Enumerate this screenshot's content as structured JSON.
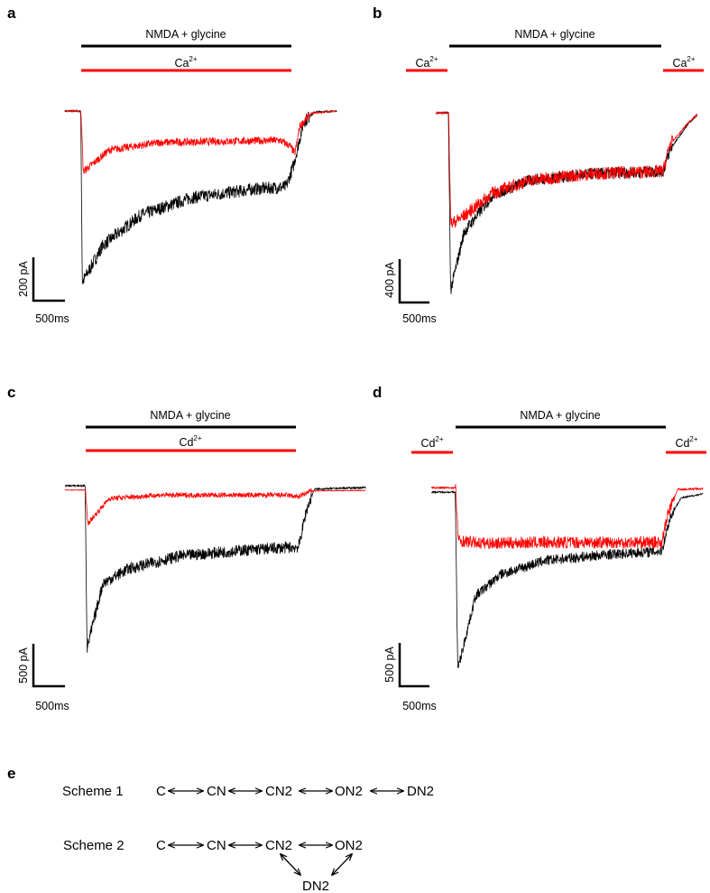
{
  "colors": {
    "control": "#000000",
    "ion": "#ff0000"
  },
  "chart_data": [
    {
      "type": "line",
      "panel": "a",
      "application_label": "NMDA + glycine",
      "ion_label": {
        "base": "Ca",
        "sup": "2+"
      },
      "ion_during_application": true,
      "scale_bar": {
        "y_label": "200 pA",
        "x_label": "500ms",
        "y_value_pA": 200,
        "x_value_ms": 500
      },
      "application_ms": [
        250,
        3720
      ],
      "xlim_ms": [
        0,
        4300
      ],
      "series": [
        {
          "name": "control",
          "color": "#000000",
          "noise_pA": 30,
          "points": [
            [
              0,
              0
            ],
            [
              250,
              0
            ],
            [
              275,
              -790
            ],
            [
              600,
              -620
            ],
            [
              1200,
              -480
            ],
            [
              2000,
              -400
            ],
            [
              3000,
              -360
            ],
            [
              3500,
              -350
            ],
            [
              3620,
              -250
            ],
            [
              3780,
              -50
            ],
            [
              3950,
              -5
            ],
            [
              4300,
              0
            ]
          ]
        },
        {
          "name": "Ca2+",
          "color": "#ff0000",
          "noise_pA": 18,
          "points": [
            [
              0,
              0
            ],
            [
              255,
              0
            ],
            [
              290,
              -280
            ],
            [
              700,
              -180
            ],
            [
              1500,
              -145
            ],
            [
              3400,
              -135
            ],
            [
              3560,
              -160
            ],
            [
              3640,
              -195
            ],
            [
              3720,
              -70
            ],
            [
              3900,
              -10
            ],
            [
              4300,
              0
            ]
          ]
        }
      ]
    },
    {
      "type": "line",
      "panel": "b",
      "application_label": "NMDA + glycine",
      "ion_label": {
        "base": "Ca",
        "sup": "2+"
      },
      "ion_during_application": false,
      "scale_bar": {
        "y_label": "400 pA",
        "x_label": "500ms",
        "y_value_pA": 400,
        "x_value_ms": 500
      },
      "application_ms": [
        214,
        3600
      ],
      "xlim_ms": [
        0,
        4140
      ],
      "series": [
        {
          "name": "control",
          "color": "#000000",
          "noise_pA": 55,
          "points": [
            [
              0,
              0
            ],
            [
              200,
              0
            ],
            [
              235,
              -1640
            ],
            [
              450,
              -1100
            ],
            [
              900,
              -760
            ],
            [
              1500,
              -620
            ],
            [
              2500,
              -560
            ],
            [
              3600,
              -540
            ],
            [
              3720,
              -330
            ],
            [
              4000,
              -100
            ],
            [
              4140,
              -20
            ]
          ]
        },
        {
          "name": "Ca2+",
          "color": "#ff0000",
          "noise_pA": 60,
          "points": [
            [
              0,
              0
            ],
            [
              205,
              0
            ],
            [
              240,
              -1025
            ],
            [
              450,
              -950
            ],
            [
              900,
              -740
            ],
            [
              1500,
              -620
            ],
            [
              2500,
              -560
            ],
            [
              3600,
              -540
            ],
            [
              3700,
              -300
            ],
            [
              4000,
              -90
            ],
            [
              4140,
              -15
            ]
          ]
        }
      ]
    },
    {
      "type": "line",
      "panel": "c",
      "application_label": "NMDA + glycine",
      "ion_label": {
        "base": "Cd",
        "sup": "2+"
      },
      "ion_during_application": true,
      "scale_bar": {
        "y_label": "500 pA",
        "x_label": "500ms",
        "y_value_pA": 500,
        "x_value_ms": 500
      },
      "application_ms": [
        330,
        3760
      ],
      "xlim_ms": [
        0,
        4760
      ],
      "series": [
        {
          "name": "control",
          "color": "#000000",
          "noise_pA": 70,
          "points": [
            [
              0,
              0
            ],
            [
              320,
              0
            ],
            [
              350,
              -1915
            ],
            [
              600,
              -1150
            ],
            [
              1000,
              -980
            ],
            [
              1800,
              -830
            ],
            [
              2800,
              -760
            ],
            [
              3700,
              -720
            ],
            [
              3820,
              -300
            ],
            [
              3950,
              -40
            ],
            [
              4760,
              -20
            ]
          ]
        },
        {
          "name": "Cd2+",
          "color": "#ff0000",
          "noise_pA": 30,
          "points": [
            [
              0,
              -50
            ],
            [
              325,
              -50
            ],
            [
              360,
              -447
            ],
            [
              700,
              -150
            ],
            [
              1500,
              -110
            ],
            [
              3500,
              -110
            ],
            [
              3700,
              -130
            ],
            [
              3900,
              -60
            ],
            [
              4760,
              -55
            ]
          ]
        }
      ]
    },
    {
      "type": "line",
      "panel": "d",
      "application_label": "NMDA + glycine",
      "ion_label": {
        "base": "Cd",
        "sup": "2+"
      },
      "ion_during_application": false,
      "scale_bar": {
        "y_label": "500 pA",
        "x_label": "500ms",
        "y_value_pA": 500,
        "x_value_ms": 500
      },
      "application_ms": [
        385,
        3700
      ],
      "xlim_ms": [
        0,
        4300
      ],
      "series": [
        {
          "name": "control",
          "color": "#000000",
          "noise_pA": 60,
          "points": [
            [
              0,
              0
            ],
            [
              380,
              0
            ],
            [
              420,
              -2050
            ],
            [
              700,
              -1200
            ],
            [
              1100,
              -950
            ],
            [
              1800,
              -790
            ],
            [
              2800,
              -720
            ],
            [
              3650,
              -680
            ],
            [
              3780,
              -300
            ],
            [
              3950,
              -70
            ],
            [
              4300,
              -20
            ]
          ]
        },
        {
          "name": "Cd2+",
          "color": "#ff0000",
          "noise_pA": 70,
          "points": [
            [
              0,
              50
            ],
            [
              385,
              50
            ],
            [
              430,
              -560
            ],
            [
              800,
              -590
            ],
            [
              2000,
              -580
            ],
            [
              3650,
              -580
            ],
            [
              3750,
              -250
            ],
            [
              3900,
              30
            ],
            [
              4300,
              40
            ]
          ]
        }
      ]
    }
  ],
  "panels": {
    "a": "a",
    "b": "b",
    "c": "c",
    "d": "d",
    "e": "e"
  },
  "schemes": {
    "scheme1": {
      "label": "Scheme 1",
      "states": [
        "C",
        "CN",
        "CN2",
        "ON2",
        "DN2"
      ]
    },
    "scheme2": {
      "label": "Scheme 2",
      "states": [
        "C",
        "CN",
        "CN2",
        "ON2",
        "DN2"
      ]
    }
  }
}
